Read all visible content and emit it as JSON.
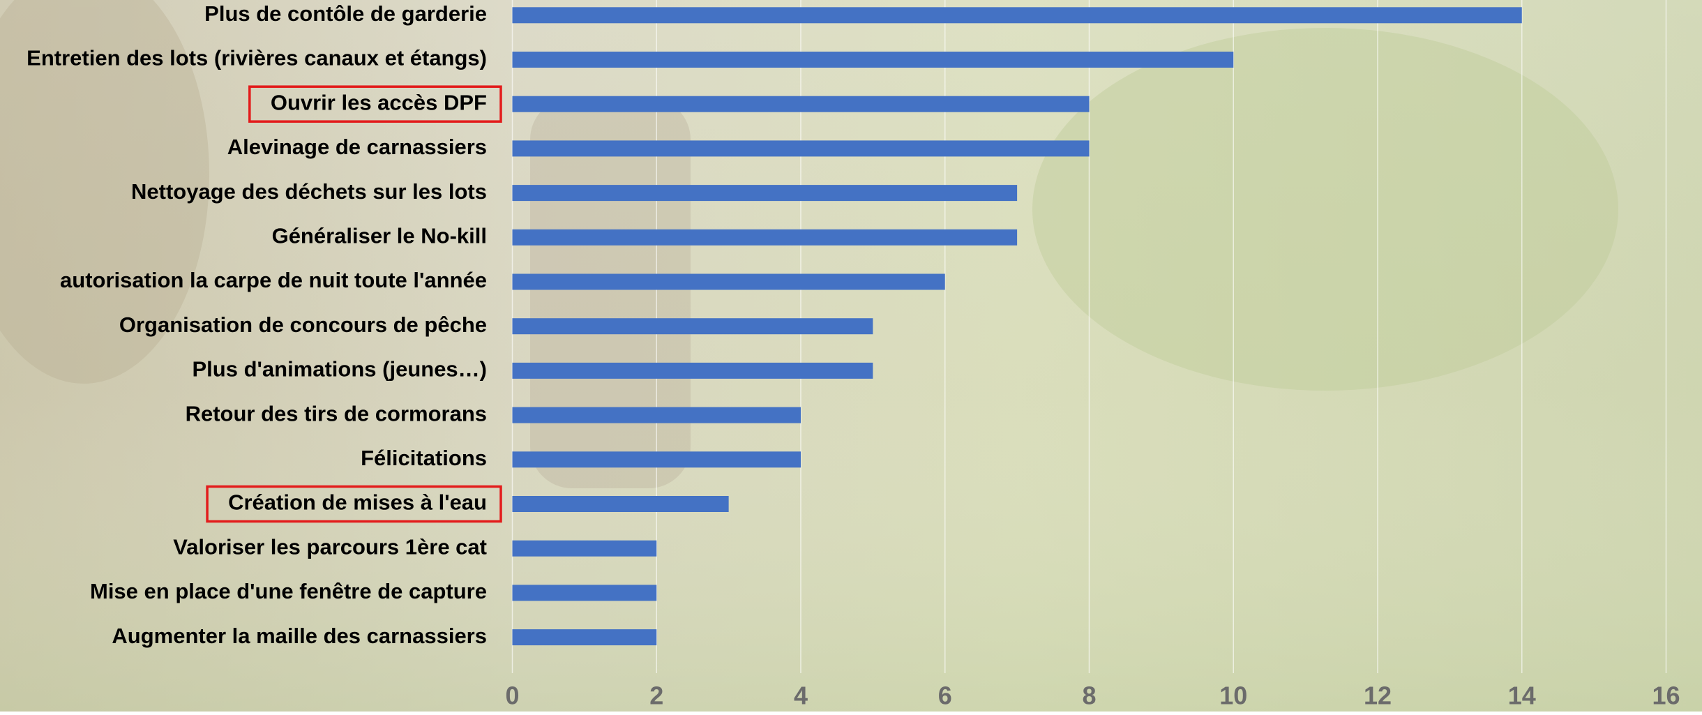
{
  "chart_data": {
    "type": "bar",
    "orientation": "horizontal",
    "categories": [
      "Plus de contôle de garderie",
      "Entretien des lots (rivières canaux et étangs)",
      "Ouvrir les accès DPF",
      "Alevinage de carnassiers",
      "Nettoyage des déchets sur les lots",
      "Généraliser le No-kill",
      "autorisation la carpe de nuit toute l'année",
      "Organisation de concours de pêche",
      "Plus d'animations (jeunes…)",
      "Retour des tirs de cormorans",
      "Félicitations",
      "Création de mises à l'eau",
      "Valoriser les parcours 1ère cat",
      "Mise en place d'une fenêtre de capture",
      "Augmenter la maille des carnassiers"
    ],
    "values": [
      14,
      10,
      8,
      8,
      7,
      7,
      6,
      5,
      5,
      4,
      4,
      3,
      2,
      2,
      2
    ],
    "color": "#4472c4",
    "xlim": [
      0,
      16
    ],
    "xticks": [
      0,
      2,
      4,
      6,
      8,
      10,
      12,
      14,
      16
    ],
    "grid": true,
    "highlighted": [
      2,
      11
    ],
    "highlight_color": "#e31b1b"
  }
}
